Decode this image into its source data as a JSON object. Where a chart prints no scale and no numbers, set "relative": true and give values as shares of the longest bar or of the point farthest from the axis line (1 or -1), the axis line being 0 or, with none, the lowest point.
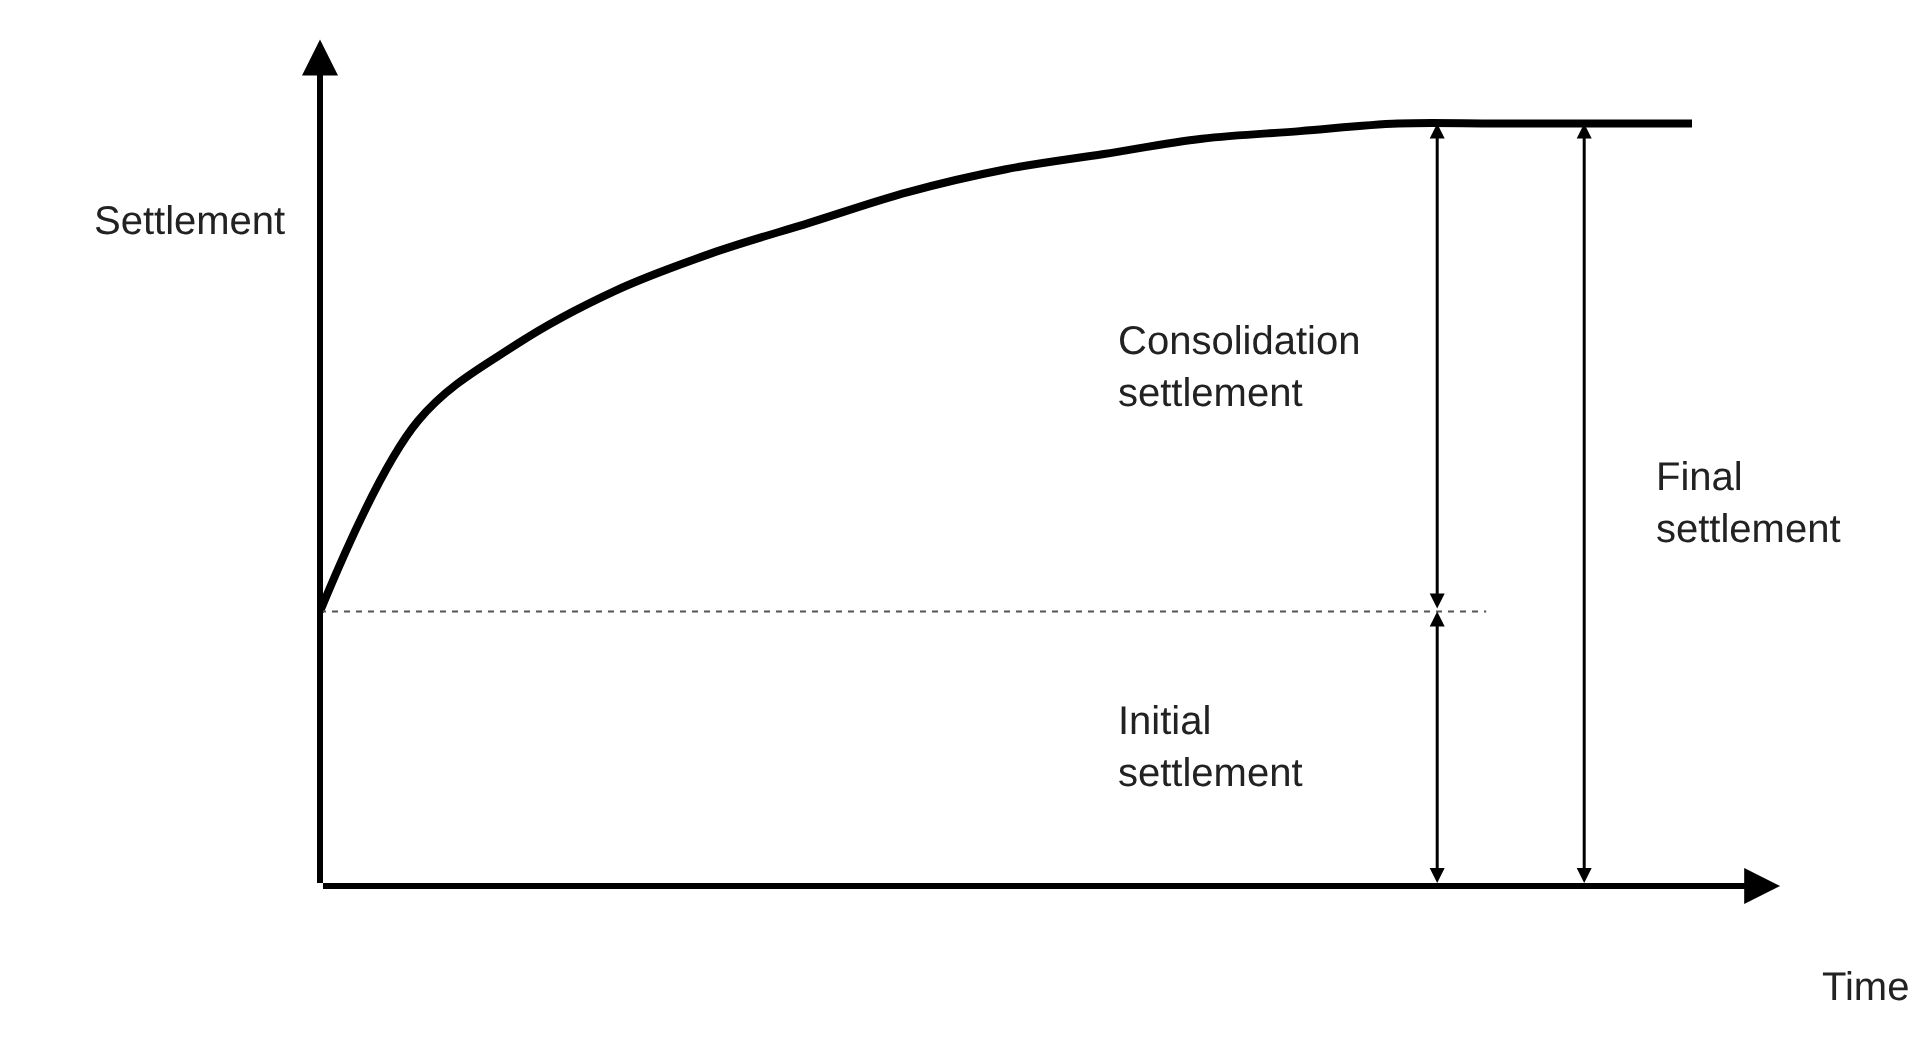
{
  "chart_data": {
    "type": "line",
    "relative": true,
    "xlabel": "Time",
    "ylabel": "Settlement",
    "categories": [
      null,
      null,
      null,
      null,
      null,
      null,
      null,
      null,
      null,
      null,
      null,
      null,
      null,
      null,
      null
    ],
    "series": [
      {
        "color": "#000000",
        "values": [
          0.36,
          0.61,
          0.71,
          0.78,
          0.83,
          0.87,
          0.91,
          0.94,
          0.96,
          0.98,
          0.99,
          1,
          1,
          1,
          1
        ]
      }
    ],
    "ref_lines": [
      {
        "axis": "y",
        "value": 0.36,
        "color": "#555555",
        "line_style": "dotted"
      }
    ],
    "annotations": [
      "Consolidation settlement",
      "Initial settlement",
      "Final settlement"
    ],
    "marker": "none",
    "line_style": "solid"
  }
}
